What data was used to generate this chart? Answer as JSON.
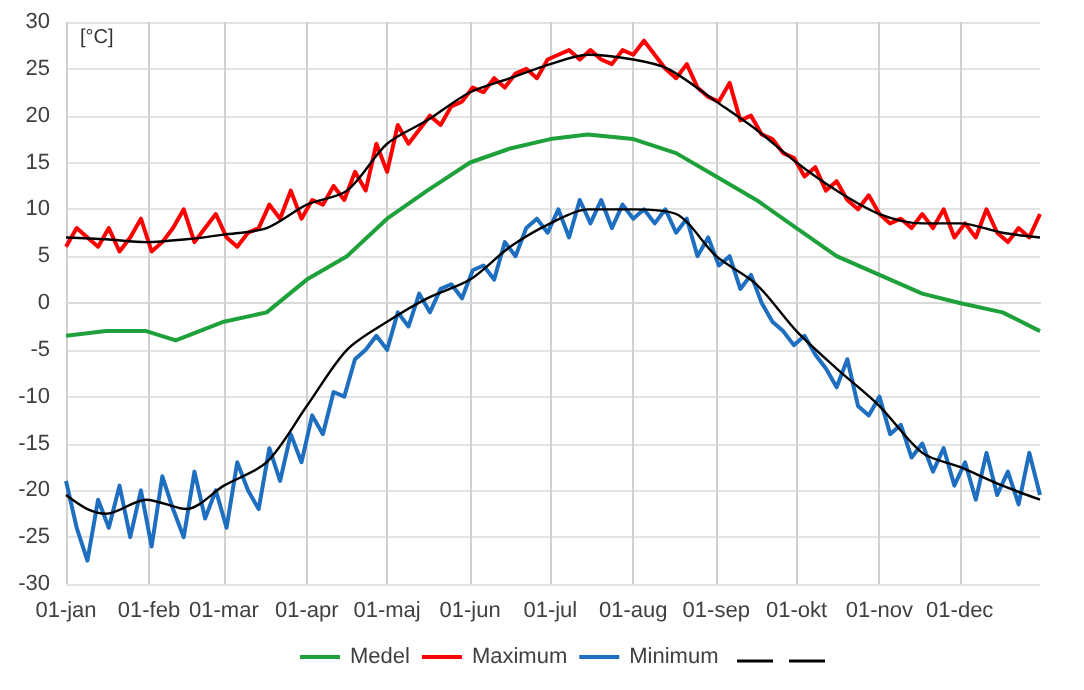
{
  "chart_data": {
    "type": "line",
    "ylabel": "[°C]",
    "xlim": [
      "--01-01",
      "--12-31"
    ],
    "xticks": [
      {
        "value": "--01-01",
        "label": "01-jan"
      },
      {
        "value": "--02-01",
        "label": "01-feb"
      },
      {
        "value": "--03-01",
        "label": "01-mar"
      },
      {
        "value": "--04-01",
        "label": "01-apr"
      },
      {
        "value": "--05-01",
        "label": "01-maj"
      },
      {
        "value": "--06-01",
        "label": "01-jun"
      },
      {
        "value": "--07-01",
        "label": "01-jul"
      },
      {
        "value": "--08-01",
        "label": "01-aug"
      },
      {
        "value": "--09-01",
        "label": "01-sep"
      },
      {
        "value": "--10-01",
        "label": "01-okt"
      },
      {
        "value": "--11-01",
        "label": "01-nov"
      },
      {
        "value": "--12-01",
        "label": "01-dec"
      }
    ],
    "ylim": [
      -30,
      30
    ],
    "yticks": [
      -30,
      -25,
      -20,
      -15,
      -10,
      -5,
      0,
      5,
      10,
      15,
      20,
      25,
      30
    ],
    "grid": true,
    "legend": "bottom",
    "marker": "none",
    "line_style": "solid",
    "series": [
      {
        "name": "Medel",
        "color": "#1ea13a",
        "x": [
          "--01-01",
          "--01-16",
          "--01-31",
          "--02-11",
          "--03-01",
          "--03-17",
          "--04-01",
          "--04-16",
          "--05-01",
          "--05-16",
          "--06-01",
          "--06-16",
          "--07-01",
          "--07-15",
          "--08-01",
          "--08-17",
          "--09-01",
          "--09-16",
          "--10-01",
          "--10-16",
          "--11-01",
          "--11-17",
          "--12-01",
          "--12-17",
          "--12-31"
        ],
        "values": [
          -3.5,
          -3,
          -3,
          -4,
          -2,
          -1,
          2.5,
          5,
          9,
          12,
          15,
          16.5,
          17.5,
          18,
          17.5,
          16,
          13.5,
          11,
          8,
          5,
          3,
          1,
          0,
          -1,
          -3
        ]
      },
      {
        "name": "Maximum",
        "color": "#ff0000",
        "x": [
          "--01-01",
          "--01-05",
          "--01-09",
          "--01-13",
          "--01-17",
          "--01-21",
          "--01-25",
          "--01-29",
          "--02-02",
          "--02-06",
          "--02-10",
          "--02-14",
          "--02-18",
          "--02-22",
          "--02-26",
          "--03-02",
          "--03-06",
          "--03-10",
          "--03-14",
          "--03-18",
          "--03-22",
          "--03-26",
          "--03-30",
          "--04-03",
          "--04-07",
          "--04-11",
          "--04-15",
          "--04-19",
          "--04-23",
          "--04-27",
          "--05-01",
          "--05-05",
          "--05-09",
          "--05-13",
          "--05-17",
          "--05-21",
          "--05-25",
          "--05-29",
          "--06-02",
          "--06-06",
          "--06-10",
          "--06-14",
          "--06-18",
          "--06-22",
          "--06-26",
          "--06-30",
          "--07-04",
          "--07-08",
          "--07-12",
          "--07-16",
          "--07-20",
          "--07-24",
          "--07-28",
          "--08-01",
          "--08-05",
          "--08-09",
          "--08-13",
          "--08-17",
          "--08-21",
          "--08-25",
          "--08-29",
          "--09-02",
          "--09-06",
          "--09-10",
          "--09-14",
          "--09-18",
          "--09-22",
          "--09-26",
          "--09-30",
          "--10-04",
          "--10-08",
          "--10-12",
          "--10-16",
          "--10-20",
          "--10-24",
          "--10-28",
          "--11-01",
          "--11-05",
          "--11-09",
          "--11-13",
          "--11-17",
          "--11-21",
          "--11-25",
          "--11-29",
          "--12-03",
          "--12-07",
          "--12-11",
          "--12-15",
          "--12-19",
          "--12-23",
          "--12-27",
          "--12-31"
        ],
        "values": [
          6,
          8,
          7,
          6,
          8,
          5.5,
          7,
          9,
          5.5,
          6.5,
          8,
          10,
          6.5,
          8,
          9.5,
          7,
          6,
          7.5,
          8,
          10.5,
          9,
          12,
          9,
          11,
          10.5,
          12.5,
          11,
          14,
          12,
          17,
          14,
          19,
          17,
          18.5,
          20,
          19,
          21,
          21.5,
          23,
          22.5,
          24,
          23,
          24.5,
          25,
          24,
          26,
          26.5,
          27,
          26,
          27,
          26,
          25.5,
          27,
          26.5,
          28,
          26.5,
          25,
          24,
          25.5,
          23,
          22,
          21.5,
          23.5,
          19.5,
          20,
          18,
          17.5,
          16,
          15.5,
          13.5,
          14.5,
          12,
          13,
          11,
          10,
          11.5,
          9.5,
          8.5,
          9,
          8,
          9.5,
          8,
          10,
          7,
          8.5,
          7,
          10,
          7.5,
          6.5,
          8,
          7,
          9.5
        ]
      },
      {
        "name": "Minimum",
        "color": "#1f6fc0",
        "x": [
          "--01-01",
          "--01-05",
          "--01-09",
          "--01-13",
          "--01-17",
          "--01-21",
          "--01-25",
          "--01-29",
          "--02-02",
          "--02-06",
          "--02-10",
          "--02-14",
          "--02-18",
          "--02-22",
          "--02-26",
          "--03-02",
          "--03-06",
          "--03-10",
          "--03-14",
          "--03-18",
          "--03-22",
          "--03-26",
          "--03-30",
          "--04-03",
          "--04-07",
          "--04-11",
          "--04-15",
          "--04-19",
          "--04-23",
          "--04-27",
          "--05-01",
          "--05-05",
          "--05-09",
          "--05-13",
          "--05-17",
          "--05-21",
          "--05-25",
          "--05-29",
          "--06-02",
          "--06-06",
          "--06-10",
          "--06-14",
          "--06-18",
          "--06-22",
          "--06-26",
          "--06-30",
          "--07-04",
          "--07-08",
          "--07-12",
          "--07-16",
          "--07-20",
          "--07-24",
          "--07-28",
          "--08-01",
          "--08-05",
          "--08-09",
          "--08-13",
          "--08-17",
          "--08-21",
          "--08-25",
          "--08-29",
          "--09-02",
          "--09-06",
          "--09-10",
          "--09-14",
          "--09-18",
          "--09-22",
          "--09-26",
          "--09-30",
          "--10-04",
          "--10-08",
          "--10-12",
          "--10-16",
          "--10-20",
          "--10-24",
          "--10-28",
          "--11-01",
          "--11-05",
          "--11-09",
          "--11-13",
          "--11-17",
          "--11-21",
          "--11-25",
          "--11-29",
          "--12-03",
          "--12-07",
          "--12-11",
          "--12-15",
          "--12-19",
          "--12-23",
          "--12-27",
          "--12-31"
        ],
        "values": [
          -19,
          -24,
          -27.5,
          -21,
          -24,
          -19.5,
          -25,
          -20,
          -26,
          -18.5,
          -22,
          -25,
          -18,
          -23,
          -20,
          -24,
          -17,
          -20,
          -22,
          -15.5,
          -19,
          -14,
          -17,
          -12,
          -14,
          -9.5,
          -10,
          -6,
          -5,
          -3.5,
          -5,
          -1,
          -2.5,
          1,
          -1,
          1.5,
          2,
          0.5,
          3.5,
          4,
          2.5,
          6.5,
          5,
          8,
          9,
          7.5,
          10,
          7,
          11,
          8.5,
          11,
          8,
          10.5,
          9,
          10,
          8.5,
          10,
          7.5,
          9,
          5,
          7,
          4,
          5,
          1.5,
          3,
          0,
          -2,
          -3,
          -4.5,
          -3.5,
          -5.5,
          -7,
          -9,
          -6,
          -11,
          -12,
          -10,
          -14,
          -13,
          -16.5,
          -15,
          -18,
          -15.5,
          -19.5,
          -17,
          -21,
          -16,
          -20.5,
          -18,
          -21.5,
          -16,
          -20.5
        ]
      },
      {
        "color": "#000000",
        "x": [
          "--01-01",
          "--01-16",
          "--01-31",
          "--02-15",
          "--03-01",
          "--03-17",
          "--04-01",
          "--04-16",
          "--05-01",
          "--05-16",
          "--06-01",
          "--06-16",
          "--07-01",
          "--07-15",
          "--08-01",
          "--08-14",
          "--09-01",
          "--09-16",
          "--10-01",
          "--10-16",
          "--11-01",
          "--11-17",
          "--12-01",
          "--12-17",
          "--12-31"
        ],
        "values": [
          7,
          6.8,
          6.5,
          6.8,
          7.3,
          8,
          10.5,
          12,
          17,
          19.5,
          22.5,
          24,
          25.5,
          26.5,
          26,
          25,
          21.5,
          18.5,
          15,
          12,
          9.5,
          8.5,
          8.5,
          7.5,
          7
        ]
      },
      {
        "color": "#000000",
        "x": [
          "--01-01",
          "--01-09",
          "--01-16",
          "--01-31",
          "--02-15",
          "--03-01",
          "--03-17",
          "--04-01",
          "--04-16",
          "--05-01",
          "--05-16",
          "--06-01",
          "--06-16",
          "--07-01",
          "--07-15",
          "--08-01",
          "--08-17",
          "--09-01",
          "--09-16",
          "--10-01",
          "--10-16",
          "--11-01",
          "--11-17",
          "--12-01",
          "--12-17",
          "--12-31"
        ],
        "values": [
          -20.5,
          -22,
          -22.5,
          -21,
          -22,
          -19.5,
          -17,
          -11,
          -5,
          -2,
          0.5,
          2.5,
          6,
          8.5,
          10,
          10,
          9.5,
          5,
          2,
          -3,
          -7,
          -11,
          -16,
          -17.5,
          -19.5,
          -21
        ]
      }
    ]
  }
}
